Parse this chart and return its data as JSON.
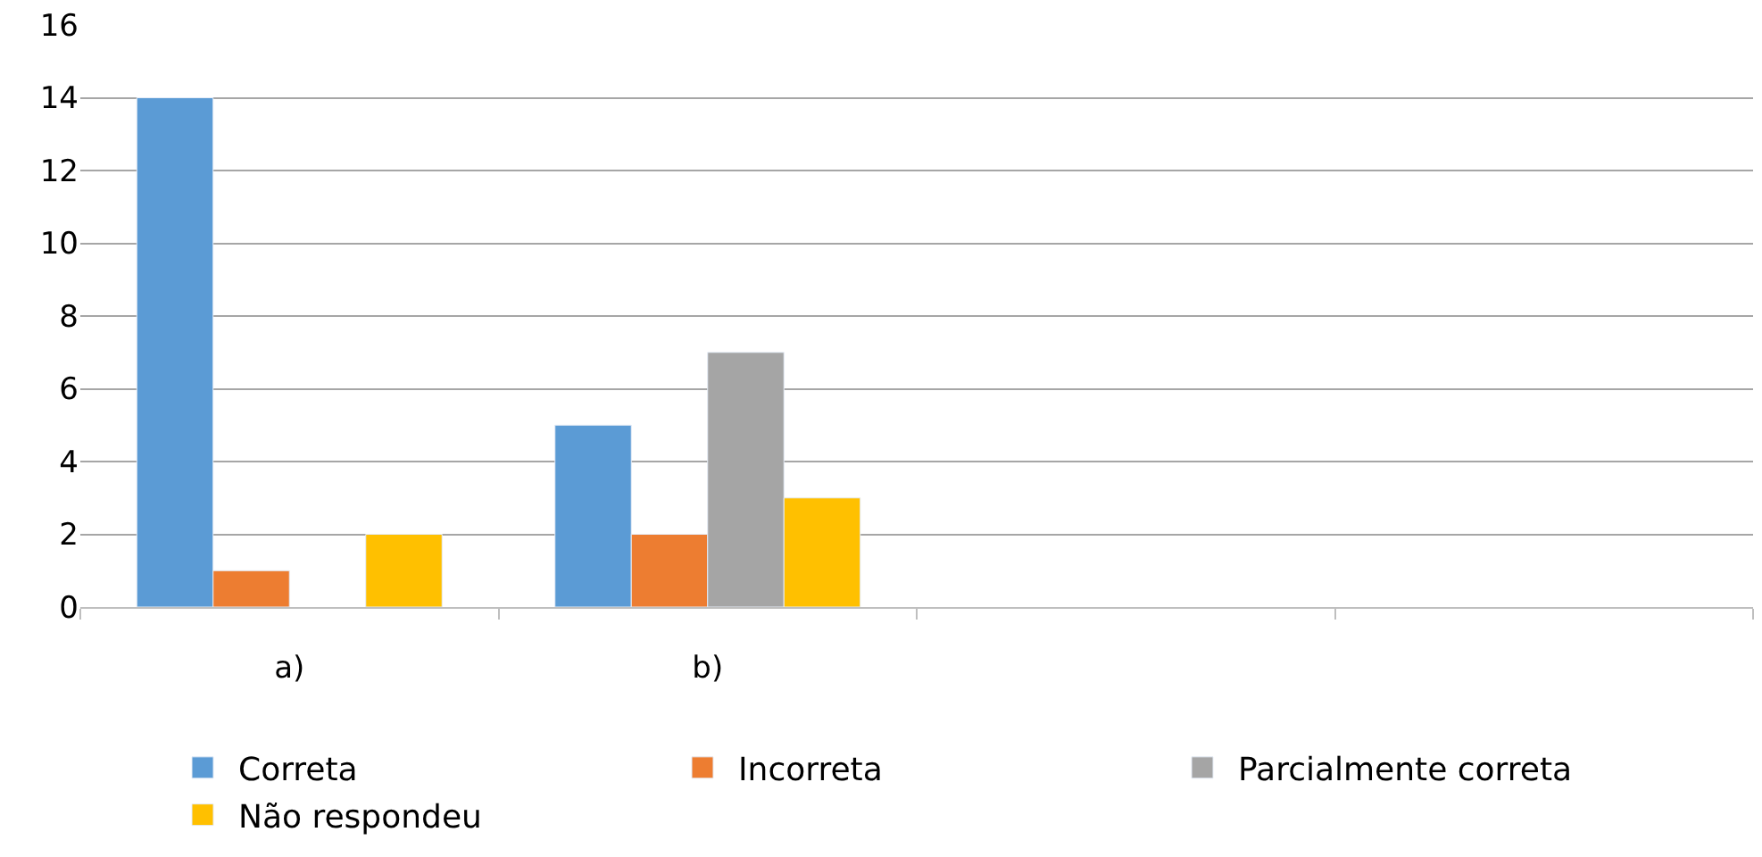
{
  "chart_data": {
    "type": "bar",
    "categories": [
      "a)",
      "b)",
      null,
      null
    ],
    "series": [
      {
        "name": "Correta",
        "color": "#5b9bd5",
        "values": [
          14,
          5,
          null,
          null
        ]
      },
      {
        "name": "Incorreta",
        "color": "#ed7d31",
        "values": [
          1,
          2,
          null,
          null
        ]
      },
      {
        "name": "Parcialmente correta",
        "color": "#a5a5a5",
        "values": [
          null,
          7,
          null,
          null
        ]
      },
      {
        "name": "Não respondeu",
        "color": "#ffc000",
        "values": [
          2,
          3,
          null,
          null
        ]
      }
    ],
    "ylim": [
      0,
      16
    ],
    "yticks": [
      0,
      2,
      4,
      6,
      8,
      10,
      12,
      14,
      16
    ],
    "grid": "y",
    "legend": "bottom"
  }
}
